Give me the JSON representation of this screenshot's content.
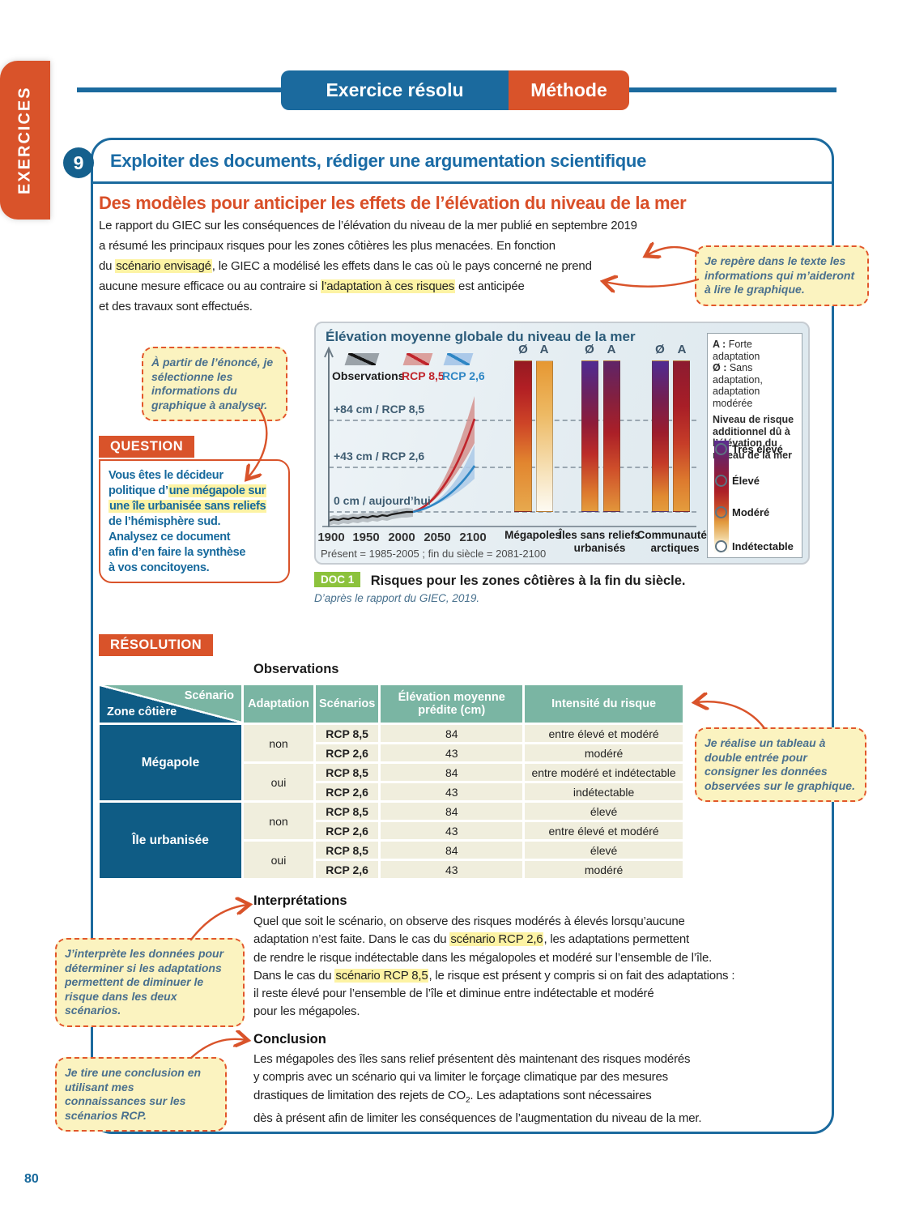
{
  "page_number": "80",
  "sidebar": {
    "tab": "EXERCICES"
  },
  "header": {
    "left_tab": "Exercice résolu",
    "right_tab": "Méthode"
  },
  "exercise": {
    "number": "9",
    "skill_title": "Exploiter des documents, rédiger une argumentation scientifique",
    "doc_title": "Des modèles pour anticiper les effets de l’élévation du niveau de la mer",
    "intro_segments": [
      {
        "t": "Le rapport du GIEC sur les conséquences de l’élévation du niveau de la mer publié en septembre 2019"
      },
      {
        "br": true
      },
      {
        "t": "a résumé les principaux risques pour les zones côtières les plus menacées. En fonction"
      },
      {
        "br": true
      },
      {
        "t": "du "
      },
      {
        "t": "scénario envisagé",
        "h": true
      },
      {
        "t": ", le GIEC a modélisé les effets dans le cas où le pays concerné ne prend"
      },
      {
        "br": true
      },
      {
        "t": "aucune mesure efficace ou au contraire si "
      },
      {
        "t": "l’adaptation à ces risques",
        "h": true
      },
      {
        "t": " est anticipée"
      },
      {
        "br": true
      },
      {
        "t": "et des travaux sont effectués."
      }
    ]
  },
  "coach_bubbles": {
    "read_text": "Je repère dans le texte les informations qui m’aideront à lire le graphique.",
    "select_info": "À partir de l’énoncé, je sélectionne les informations du graphique à analyser.",
    "make_table": "Je réalise un tableau à double entrée pour consigner les données observées sur le graphique.",
    "interpret": "J’interprète les données pour déterminer si les adaptations permettent de diminuer le risque dans les deux scénarios.",
    "conclude": "Je tire une conclusion en utilisant mes connaissances sur les scénarios RCP."
  },
  "question": {
    "label": "QUESTION",
    "segments": [
      {
        "t": "Vous êtes le décideur"
      },
      {
        "br": true
      },
      {
        "t": "politique d’"
      },
      {
        "t": "une mégapole sur",
        "h": true
      },
      {
        "br": true
      },
      {
        "t": "une île urbanisée sans reliefs",
        "h": true
      },
      {
        "br": true
      },
      {
        "t": "de l’hémisphère sud."
      },
      {
        "br": true
      },
      {
        "t": "Analysez ce document"
      },
      {
        "br": true
      },
      {
        "t": "afin d’en faire la synthèse"
      },
      {
        "br": true
      },
      {
        "t": "à vos concitoyens."
      }
    ]
  },
  "doc": {
    "badge": "DOC 1",
    "title": "Risques pour les zones côtières à la fin du siècle.",
    "source": "D’après le rapport du GIEC, 2019."
  },
  "chart": {
    "type": "line+bar",
    "title": "Élévation moyenne globale du niveau de la mer",
    "legend": [
      {
        "label": "Observations",
        "color": "#1c1c1c"
      },
      {
        "label": "RCP 8,5",
        "color": "#c0242b"
      },
      {
        "label": "RCP 2,6",
        "color": "#2e86c4"
      }
    ],
    "end_values_cm": {
      "RCP 8,5": 84,
      "RCP 2,6": 43,
      "Observations_2010": 0
    },
    "y_guides": [
      "+84 cm / RCP 8,5",
      "+43 cm / RCP 2,6",
      "0 cm / aujourd’hui"
    ],
    "x_ticks": [
      "1900",
      "1950",
      "2000",
      "2050",
      "2100"
    ],
    "x_note": "Présent = 1985-2005 ; fin du siècle = 2081-2100",
    "groups": [
      "Mégapoles",
      "Îles sans reliefs urbanisés",
      "Communautés arctiques"
    ],
    "bars": [
      {
        "group": "Mégapoles",
        "tag": "Ø",
        "risk_range": "élevé → modéré",
        "gradient": [
          "#951a21 0%",
          "#b21f24 18%",
          "#ce4527 42%",
          "#e2862f 68%",
          "#e7a94e 100%"
        ]
      },
      {
        "group": "Mégapoles",
        "tag": "A",
        "risk_range": "modéré → indétectable",
        "gradient": [
          "#e69732 0%",
          "#edb963 35%",
          "#f7e3bc 75%",
          "#fdfaf2 100%"
        ]
      },
      {
        "group": "Îles sans reliefs urbanisés",
        "tag": "Ø",
        "risk_range": "très élevé → modéré",
        "gradient": [
          "#4f2b93 0%",
          "#6b2260 22%",
          "#8f1c38 42%",
          "#bc2c28 62%",
          "#dd7a2e 88%",
          "#e49c3d 100%"
        ]
      },
      {
        "group": "Îles sans reliefs urbanisés",
        "tag": "A",
        "risk_range": "très élevé/élevé → modéré",
        "gradient": [
          "#5f2468 0%",
          "#84203f 25%",
          "#ab1f27 48%",
          "#cf4f2a 72%",
          "#e2953a 100%"
        ]
      },
      {
        "group": "Communautés arctiques",
        "tag": "Ø",
        "risk_range": "très élevé → modéré",
        "gradient": [
          "#4f2b93 0%",
          "#731f52 25%",
          "#9c1c2c 48%",
          "#c43a28 68%",
          "#e08a31 90%",
          "#e49c3d 100%"
        ]
      },
      {
        "group": "Communautés arctiques",
        "tag": "A",
        "risk_range": "élevé → modéré",
        "gradient": [
          "#8c1b30 0%",
          "#a81e27 30%",
          "#c63d28 55%",
          "#dd7b2e 80%",
          "#e49c3d 100%"
        ]
      }
    ],
    "risk_legend": {
      "adapt_strong": {
        "key": "A :",
        "text": "Forte adaptation"
      },
      "adapt_none": {
        "key": "Ø :",
        "text": "Sans adaptation, adaptation modérée"
      },
      "scale_title": "Niveau de risque additionnel dû à l’élévation du niveau de la mer",
      "scale_labels": [
        "Très élevé",
        "Élevé",
        "Modéré",
        "Indétectable"
      ],
      "scale_gradient": [
        "#5b2d91 0%",
        "#6e2361 15%",
        "#8d1d3c 30%",
        "#ad2027 45%",
        "#c94f29 60%",
        "#e29b3e 72%",
        "#efcf94 85%",
        "#fdf6e4 93%",
        "#ffffff 100%"
      ]
    }
  },
  "resolution": {
    "label": "RÉSOLUTION",
    "observations_label": "Observations",
    "table": {
      "corner_top": "Scénario",
      "corner_bottom": "Zone côtière",
      "headers": [
        "Adaptation",
        "Scénarios",
        "Élévation moyenne prédite (cm)",
        "Intensité du risque"
      ],
      "zones": [
        {
          "name": "Mégapole",
          "groups": [
            {
              "adaptation": "non",
              "rows": [
                {
                  "scenario": "RCP 8,5",
                  "elevation": "84",
                  "risk": "entre élevé et modéré"
                },
                {
                  "scenario": "RCP 2,6",
                  "elevation": "43",
                  "risk": "modéré"
                }
              ]
            },
            {
              "adaptation": "oui",
              "rows": [
                {
                  "scenario": "RCP 8,5",
                  "elevation": "84",
                  "risk": "entre modéré et indétectable"
                },
                {
                  "scenario": "RCP 2,6",
                  "elevation": "43",
                  "risk": "indétectable"
                }
              ]
            }
          ]
        },
        {
          "name": "Île urbanisée",
          "groups": [
            {
              "adaptation": "non",
              "rows": [
                {
                  "scenario": "RCP 8,5",
                  "elevation": "84",
                  "risk": "élevé"
                },
                {
                  "scenario": "RCP 2,6",
                  "elevation": "43",
                  "risk": "entre élevé et modéré"
                }
              ]
            },
            {
              "adaptation": "oui",
              "rows": [
                {
                  "scenario": "RCP 8,5",
                  "elevation": "84",
                  "risk": "élevé"
                },
                {
                  "scenario": "RCP 2,6",
                  "elevation": "43",
                  "risk": "modéré"
                }
              ]
            }
          ]
        }
      ]
    },
    "interpretation": {
      "heading": "Interprétations",
      "segments": [
        {
          "t": "Quel que soit le scénario, on observe des risques modérés à élevés lorsqu’aucune"
        },
        {
          "br": true
        },
        {
          "t": "adaptation n’est faite. Dans le cas du "
        },
        {
          "t": "scénario RCP 2,6",
          "h": true
        },
        {
          "t": ", les adaptations permettent"
        },
        {
          "br": true
        },
        {
          "t": "de rendre le risque indétectable dans les mégalopoles et modéré sur l’ensemble de l’île."
        },
        {
          "br": true
        },
        {
          "t": "Dans le cas du "
        },
        {
          "t": "scénario RCP 8,5",
          "h": true
        },
        {
          "t": ", le risque est présent y compris si on fait des adaptations :"
        },
        {
          "br": true
        },
        {
          "t": "il reste élevé pour l’ensemble de l’île et diminue entre indétectable et modéré"
        },
        {
          "br": true
        },
        {
          "t": "pour les mégapoles."
        }
      ]
    },
    "conclusion": {
      "heading": "Conclusion",
      "segments": [
        {
          "t": "Les mégapoles des îles sans relief présentent dès maintenant des risques modérés"
        },
        {
          "br": true
        },
        {
          "t": "y compris avec un scénario qui va limiter le forçage climatique par des mesures"
        },
        {
          "br": true
        },
        {
          "t": "drastiques de limitation des rejets de CO"
        },
        {
          "t": "2",
          "sub": true
        },
        {
          "t": ". Les adaptations sont nécessaires"
        },
        {
          "br": true
        },
        {
          "t": "dès à présent afin de limiter les conséquences de l’augmentation du niveau de la mer."
        }
      ]
    }
  },
  "colors": {
    "accent_orange": "#d9532a",
    "accent_blue": "#1b6a9e",
    "highlight_yellow": "#fdf3a4",
    "doc_badge_green": "#8cc23c",
    "table_header_teal": "#7ab5a3",
    "table_zone_blue": "#0f5c85",
    "rcp85_red": "#c0242b",
    "rcp26_blue": "#2e86c4"
  }
}
